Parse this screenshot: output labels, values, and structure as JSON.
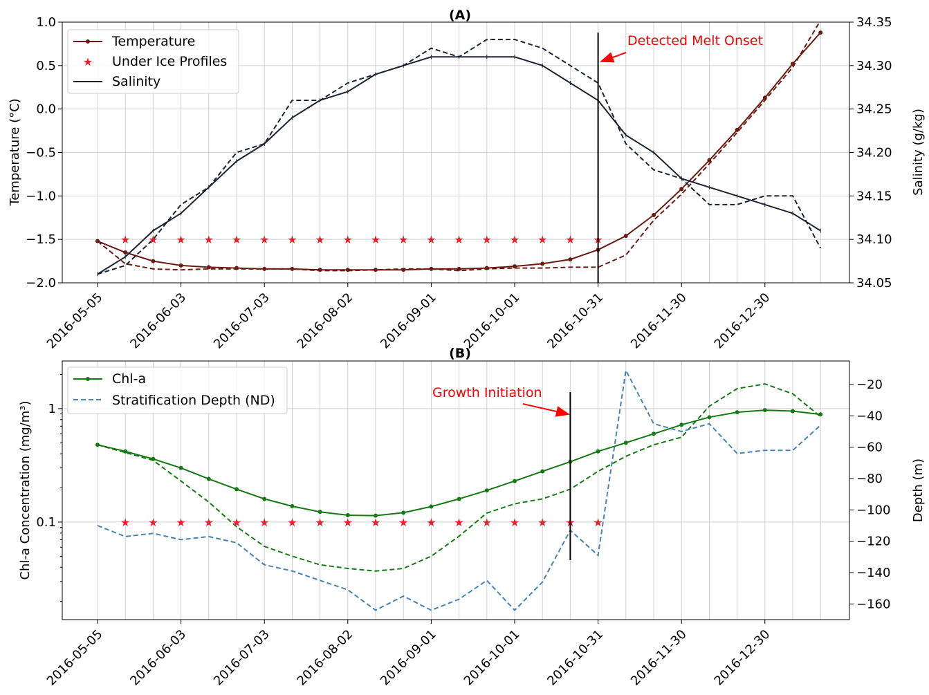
{
  "chart_data": [
    {
      "type": "line",
      "title": "(A)",
      "ylabel_left": "Temperature (°C)",
      "ylabel_right": "Salinity (g/kg)",
      "ylim_left": [
        -2.0,
        1.0
      ],
      "ylim_right": [
        34.05,
        34.35
      ],
      "yticks_left": [
        "1.0",
        "0.5",
        "0.0",
        "−0.5",
        "−1.0",
        "−1.5",
        "−2.0"
      ],
      "yticks_right": [
        "34.35",
        "34.30",
        "34.25",
        "34.20",
        "34.15",
        "34.10",
        "34.05"
      ],
      "xticks": [
        "2016-05-05",
        "2016-06-03",
        "2016-07-03",
        "2016-08-02",
        "2016-09-01",
        "2016-10-01",
        "2016-10-31",
        "2016-11-30",
        "2016-12-30"
      ],
      "x_index": [
        0,
        1,
        2,
        3,
        4,
        5,
        6,
        7,
        8,
        9,
        10,
        11,
        12,
        13,
        14,
        15,
        16,
        17,
        18,
        19,
        20,
        21,
        22,
        23,
        24,
        25,
        26
      ],
      "grid": true,
      "legend_position": "upper-left",
      "legend": [
        "Temperature",
        "Under Ice Profiles",
        "Salinity"
      ],
      "series": [
        {
          "name": "Temperature",
          "axis": "left",
          "style": "solid-dot",
          "color": "#6b1a12",
          "values": [
            -1.52,
            -1.65,
            -1.75,
            -1.8,
            -1.82,
            -1.83,
            -1.84,
            -1.84,
            -1.85,
            -1.85,
            -1.85,
            -1.85,
            -1.84,
            -1.84,
            -1.83,
            -1.81,
            -1.78,
            -1.73,
            -1.62,
            -1.46,
            -1.22,
            -0.92,
            -0.59,
            -0.24,
            0.13,
            0.52,
            0.88
          ]
        },
        {
          "axis": "left",
          "style": "dashed",
          "color": "#6b1a12",
          "values": [
            -1.52,
            -1.78,
            -1.84,
            -1.85,
            -1.84,
            -1.84,
            -1.84,
            -1.84,
            -1.86,
            -1.86,
            -1.85,
            -1.84,
            -1.84,
            -1.86,
            -1.84,
            -1.83,
            -1.83,
            -1.82,
            -1.82,
            -1.68,
            -1.28,
            -0.98,
            -0.63,
            -0.27,
            0.1,
            0.48,
            1.02
          ]
        },
        {
          "name": "Salinity",
          "axis": "right",
          "style": "solid",
          "color": "#1c2333",
          "values": [
            34.06,
            34.08,
            34.11,
            34.13,
            34.16,
            34.19,
            34.21,
            34.24,
            34.26,
            34.27,
            34.29,
            34.3,
            34.31,
            34.31,
            34.31,
            34.31,
            34.3,
            34.28,
            34.26,
            34.22,
            34.2,
            34.17,
            34.16,
            34.15,
            34.14,
            34.13,
            34.11
          ]
        },
        {
          "axis": "right",
          "style": "dashed",
          "color": "#1c2333",
          "values": [
            34.06,
            34.07,
            34.1,
            34.14,
            34.16,
            34.2,
            34.21,
            34.26,
            34.26,
            34.28,
            34.29,
            34.3,
            34.32,
            34.31,
            34.33,
            34.33,
            34.32,
            34.3,
            34.28,
            34.21,
            34.18,
            34.17,
            34.14,
            34.14,
            34.15,
            34.15,
            34.09
          ]
        },
        {
          "name": "Under Ice Profiles",
          "axis": "left",
          "style": "star",
          "color": "#e8202a",
          "x_index": [
            1,
            2,
            3,
            4,
            5,
            6,
            7,
            8,
            9,
            10,
            11,
            12,
            13,
            14,
            15,
            16,
            17,
            18
          ],
          "values": [
            -1.5,
            -1.5,
            -1.5,
            -1.5,
            -1.5,
            -1.5,
            -1.5,
            -1.5,
            -1.5,
            -1.5,
            -1.5,
            -1.5,
            -1.5,
            -1.5,
            -1.5,
            -1.5,
            -1.5,
            -1.5
          ]
        }
      ],
      "vline": {
        "x_index": 18,
        "ymin": -2.0,
        "ymax": 0.88
      },
      "annotation": {
        "text": "Detected Melt Onset",
        "color": "#ff0000"
      }
    },
    {
      "type": "line",
      "title": "(B)",
      "ylabel_left": "Chl-a Concentration (mg/m³)",
      "ylabel_right": "Depth (m)",
      "ylim_left_log10": [
        -1.86,
        0.42
      ],
      "ylim_right": [
        -170,
        -5
      ],
      "yticks_left": [
        "1",
        "0.1"
      ],
      "yticks_right": [
        "−20",
        "−40",
        "−60",
        "−80",
        "−100",
        "−120",
        "−140",
        "−160"
      ],
      "xticks": [
        "2016-05-05",
        "2016-06-03",
        "2016-07-03",
        "2016-08-02",
        "2016-09-01",
        "2016-10-01",
        "2016-10-31",
        "2016-11-30",
        "2016-12-30"
      ],
      "grid": true,
      "legend_position": "upper-left",
      "legend": [
        "Chl-a",
        "Stratification Depth (ND)"
      ],
      "series": [
        {
          "name": "Chl-a",
          "axis": "left",
          "style": "solid-dot",
          "color": "#137a13",
          "values": [
            0.48,
            0.42,
            0.36,
            0.3,
            0.24,
            0.195,
            0.16,
            0.138,
            0.123,
            0.115,
            0.114,
            0.121,
            0.137,
            0.16,
            0.19,
            0.23,
            0.28,
            0.34,
            0.42,
            0.5,
            0.6,
            0.72,
            0.84,
            0.93,
            0.97,
            0.95,
            0.89
          ]
        },
        {
          "axis": "left",
          "style": "dashed",
          "color": "#137a13",
          "values": [
            0.48,
            0.41,
            0.35,
            0.23,
            0.15,
            0.091,
            0.061,
            0.05,
            0.042,
            0.039,
            0.037,
            0.039,
            0.05,
            0.075,
            0.12,
            0.145,
            0.16,
            0.195,
            0.28,
            0.38,
            0.48,
            0.56,
            1.05,
            1.5,
            1.65,
            1.35,
            0.85
          ]
        },
        {
          "name": "Stratification Depth (ND)",
          "axis": "right",
          "style": "dashed",
          "color": "#4682b4",
          "values": [
            -110,
            -117,
            -115,
            -119,
            -117,
            -121,
            -135,
            -139,
            -145,
            -151,
            -164,
            -155,
            -164,
            -157,
            -145,
            -164,
            -146,
            -113,
            -129,
            -11,
            -45,
            -50,
            -45,
            -64,
            -62,
            -62,
            -46
          ]
        },
        {
          "axis": "left",
          "style": "star",
          "color": "#e8202a",
          "x_index": [
            1,
            2,
            3,
            4,
            5,
            6,
            7,
            8,
            9,
            10,
            11,
            12,
            13,
            14,
            15,
            16,
            17,
            18
          ],
          "values": [
            0.1,
            0.1,
            0.1,
            0.1,
            0.1,
            0.1,
            0.1,
            0.1,
            0.1,
            0.1,
            0.1,
            0.1,
            0.1,
            0.1,
            0.1,
            0.1,
            0.1,
            0.1
          ]
        }
      ],
      "vline": {
        "x_index": 17
      },
      "annotation": {
        "text": "Growth Initiation",
        "color": "#ff0000"
      }
    }
  ]
}
